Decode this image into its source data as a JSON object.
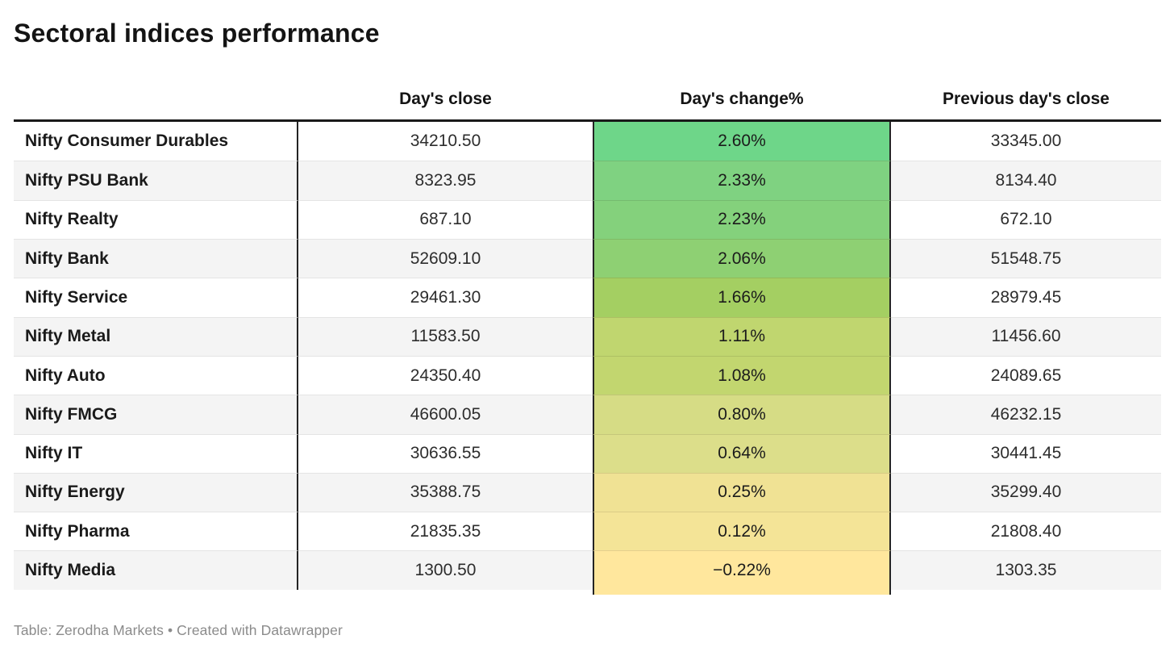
{
  "title": "Sectoral indices performance",
  "footer": "Table: Zerodha Markets • Created with Datawrapper",
  "colors": {
    "top_rule": "#1a1a1a",
    "column_rule": "#242424",
    "row_stripe": "#f4f4f4",
    "footer_text": "#8b8b8b"
  },
  "chart_data": {
    "type": "table",
    "title": "Sectoral indices performance",
    "columns": [
      "",
      "Day's close",
      "Day's change%",
      "Previous day's close"
    ],
    "heatmap_column": "Day's change%",
    "rows": [
      {
        "name": "Nifty Consumer Durables",
        "close": "34210.50",
        "change": "2.60%",
        "prev_close": "33345.00",
        "change_color": "#6ed689"
      },
      {
        "name": "Nifty PSU Bank",
        "close": "8323.95",
        "change": "2.33%",
        "prev_close": "8134.40",
        "change_color": "#7fd281"
      },
      {
        "name": "Nifty Realty",
        "close": "687.10",
        "change": "2.23%",
        "prev_close": "672.10",
        "change_color": "#84d17c"
      },
      {
        "name": "Nifty Bank",
        "close": "52609.10",
        "change": "2.06%",
        "prev_close": "51548.75",
        "change_color": "#8ed073"
      },
      {
        "name": "Nifty Service",
        "close": "29461.30",
        "change": "1.66%",
        "prev_close": "28979.45",
        "change_color": "#a4cf62"
      },
      {
        "name": "Nifty Metal",
        "close": "11583.50",
        "change": "1.11%",
        "prev_close": "11456.60",
        "change_color": "#c0d66f"
      },
      {
        "name": "Nifty Auto",
        "close": "24350.40",
        "change": "1.08%",
        "prev_close": "24089.65",
        "change_color": "#c2d66f"
      },
      {
        "name": "Nifty FMCG",
        "close": "46600.05",
        "change": "0.80%",
        "prev_close": "46232.15",
        "change_color": "#d6dc85"
      },
      {
        "name": "Nifty IT",
        "close": "30636.55",
        "change": "0.64%",
        "prev_close": "30441.45",
        "change_color": "#dcde8a"
      },
      {
        "name": "Nifty Energy",
        "close": "35388.75",
        "change": "0.25%",
        "prev_close": "35299.40",
        "change_color": "#f0e294"
      },
      {
        "name": "Nifty Pharma",
        "close": "21835.35",
        "change": "0.12%",
        "prev_close": "21808.40",
        "change_color": "#f4e497"
      },
      {
        "name": "Nifty Media",
        "close": "1300.50",
        "change": "−0.22%",
        "prev_close": "1303.35",
        "change_color": "#ffe79d"
      }
    ]
  }
}
